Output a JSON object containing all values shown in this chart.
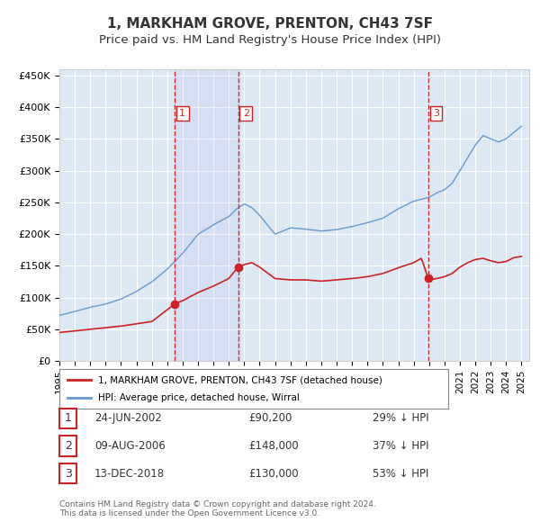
{
  "title": "1, MARKHAM GROVE, PRENTON, CH43 7SF",
  "subtitle": "Price paid vs. HM Land Registry's House Price Index (HPI)",
  "xlabel": "",
  "ylabel": "",
  "ylim": [
    0,
    450000
  ],
  "yticks": [
    0,
    50000,
    100000,
    150000,
    200000,
    250000,
    300000,
    350000,
    400000,
    450000
  ],
  "ytick_labels": [
    "£0",
    "£50K",
    "£100K",
    "£150K",
    "£200K",
    "£250K",
    "£300K",
    "£350K",
    "£400K",
    "£450K"
  ],
  "x_start_year": 1995,
  "x_end_year": 2025,
  "hpi_color": "#6699cc",
  "property_color": "#cc2222",
  "background_color": "#ffffff",
  "plot_bg_color": "#dce9f5",
  "grid_color": "#ffffff",
  "sale_dates": [
    "2002-06-24",
    "2006-08-09",
    "2018-12-13"
  ],
  "sale_prices": [
    90200,
    148000,
    130000
  ],
  "sale_labels": [
    "1",
    "2",
    "3"
  ],
  "sale_label_rows": [
    "24-JUN-2002",
    "09-AUG-2006",
    "13-DEC-2018"
  ],
  "sale_price_strs": [
    "£90,200",
    "£148,000",
    "£130,000"
  ],
  "sale_hpi_strs": [
    "29% ↓ HPI",
    "37% ↓ HPI",
    "53% ↓ HPI"
  ],
  "legend_property": "1, MARKHAM GROVE, PRENTON, CH43 7SF (detached house)",
  "legend_hpi": "HPI: Average price, detached house, Wirral",
  "footnote": "Contains HM Land Registry data © Crown copyright and database right 2024.\nThis data is licensed under the Open Government Licence v3.0.",
  "title_fontsize": 11,
  "subtitle_fontsize": 9.5
}
